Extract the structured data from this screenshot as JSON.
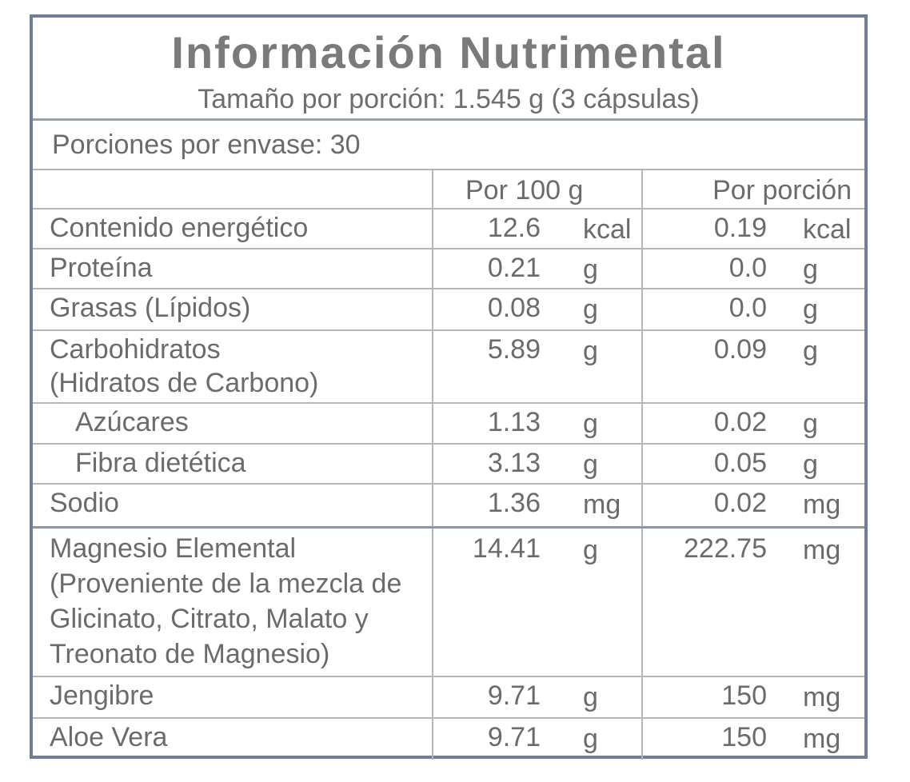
{
  "header": {
    "title": "Información Nutrimental",
    "serving_size": "Tamaño por porción: 1.545 g (3 cápsulas)"
  },
  "servings_per_container": "Porciones por envase: 30",
  "columns": {
    "per_100g": "Por 100 g",
    "per_serving": "Por porción"
  },
  "rows": [
    {
      "name": "Contenido energético",
      "v100": "12.6",
      "u100": "kcal",
      "vpor": "0.19",
      "upor": "kcal"
    },
    {
      "name": "Proteína",
      "v100": "0.21",
      "u100": "g",
      "vpor": "0.0",
      "upor": "g"
    },
    {
      "name": "Grasas (Lípidos)",
      "v100": "0.08",
      "u100": "g",
      "vpor": "0.0",
      "upor": "g"
    },
    {
      "name": "Carbohidratos",
      "name2": "(Hidratos de Carbono)",
      "v100": "5.89",
      "u100": "g",
      "vpor": "0.09",
      "upor": "g"
    },
    {
      "name": "Azúcares",
      "v100": "1.13",
      "u100": "g",
      "vpor": "0.02",
      "upor": "g"
    },
    {
      "name": "Fibra dietética",
      "v100": "3.13",
      "u100": "g",
      "vpor": "0.05",
      "upor": "g"
    },
    {
      "name": "Sodio",
      "v100": "1.36",
      "u100": "mg",
      "vpor": "0.02",
      "upor": "mg"
    },
    {
      "name": "Magnesio Elemental",
      "name2": "(Proveniente de la mezcla de",
      "name3": "Glicinato, Citrato, Malato y",
      "name4": "Treonato de Magnesio)",
      "v100": "14.41",
      "u100": "g",
      "vpor": "222.75",
      "upor": "mg"
    },
    {
      "name": "Jengibre",
      "v100": "9.71",
      "u100": "g",
      "vpor": "150",
      "upor": "mg"
    },
    {
      "name": "Aloe Vera",
      "v100": "9.71",
      "u100": "g",
      "vpor": "150",
      "upor": "mg"
    }
  ]
}
